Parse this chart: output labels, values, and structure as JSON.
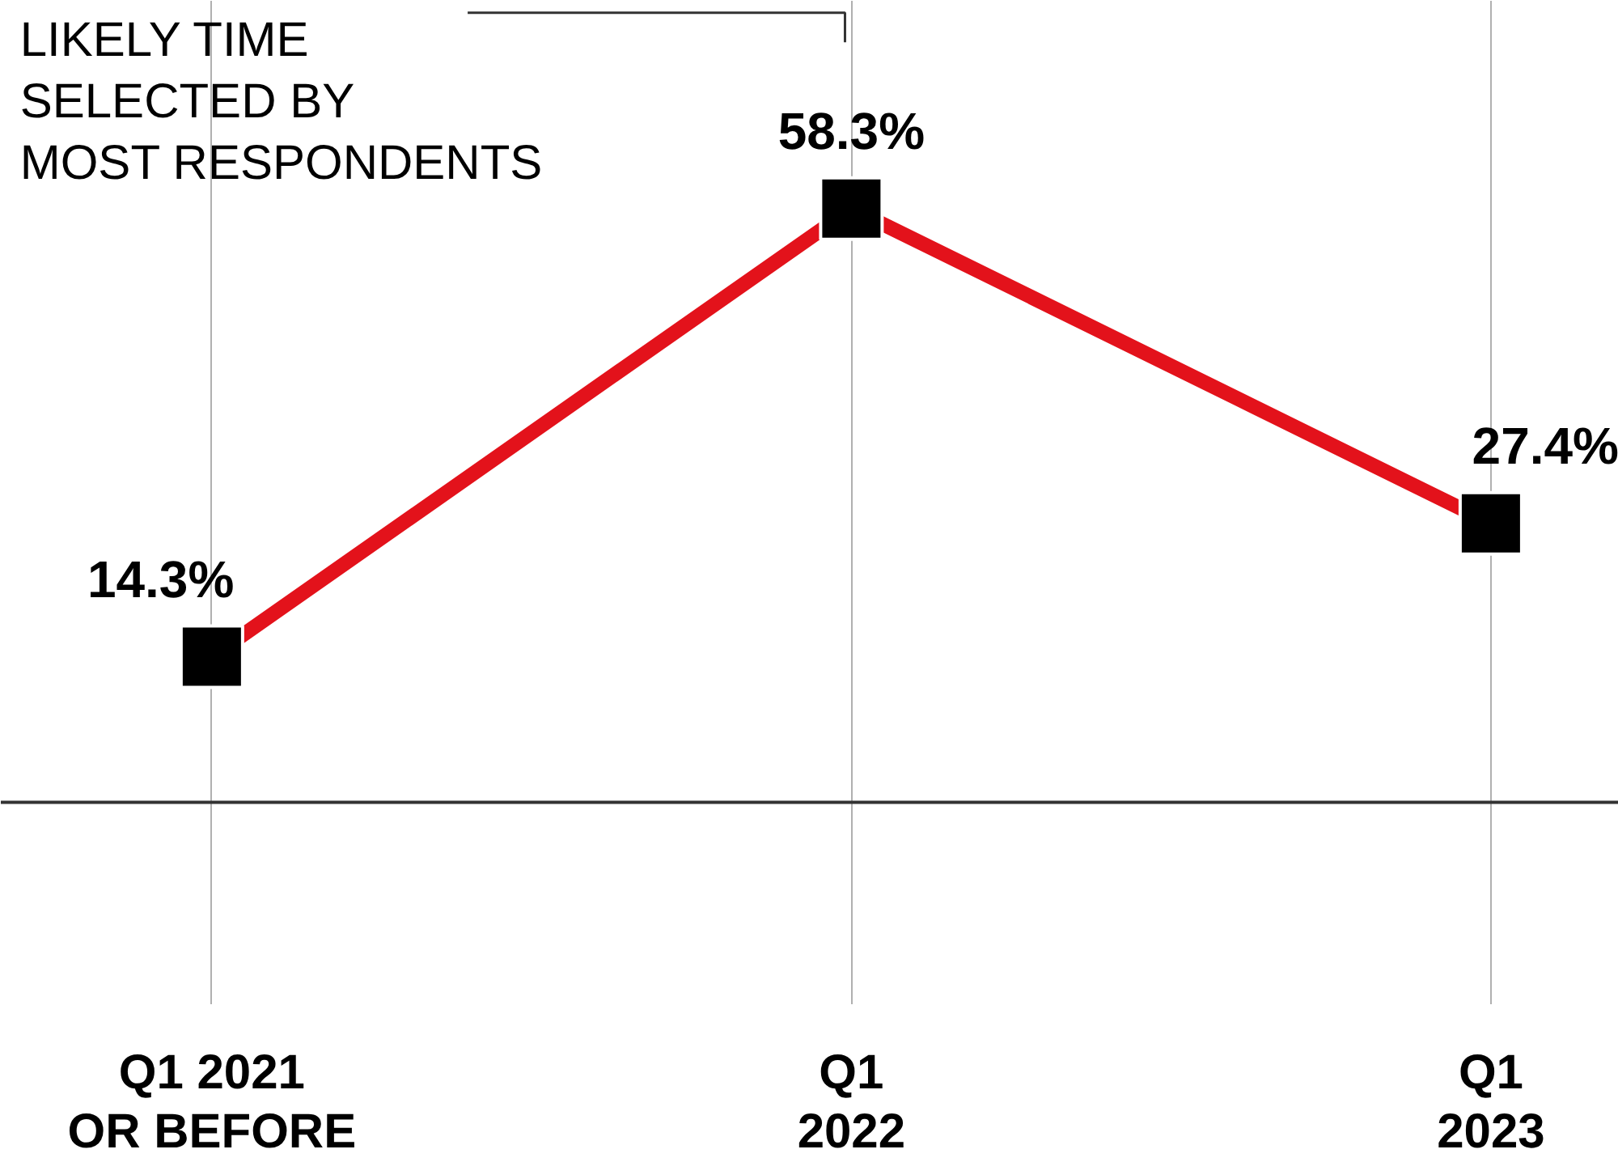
{
  "chart_data": {
    "type": "line",
    "categories": [
      "Q1 2021\nOR BEFORE",
      "Q1\n2022",
      "Q1\n2023"
    ],
    "series": [
      {
        "color": "#e3121b",
        "values": [
          14.3,
          58.3,
          27.4
        ],
        "value_labels": [
          "14.3%",
          "58.3%",
          "27.4%"
        ]
      }
    ],
    "tick_labels": "x",
    "grid": "x",
    "marker": "square",
    "annotations": [
      "LIKELY TIME\nSELECTED BY\nMOST RESPONDENTS"
    ]
  }
}
